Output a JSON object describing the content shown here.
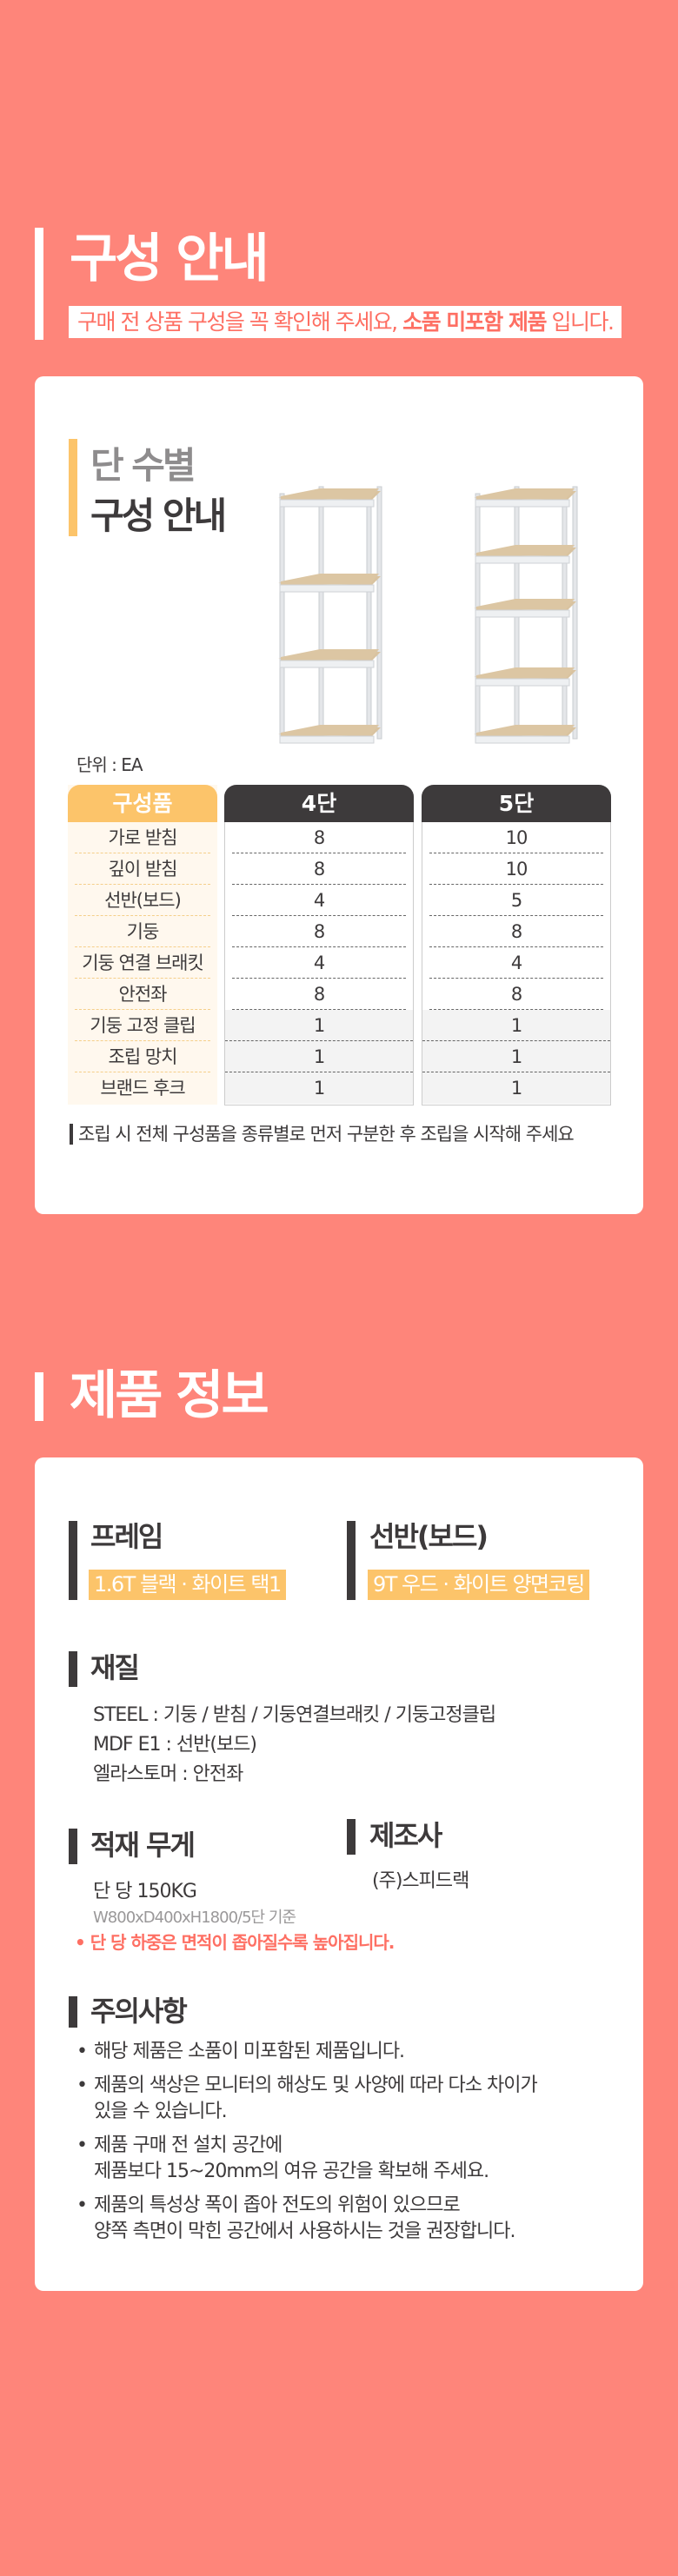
{
  "composition": {
    "title": "구성 안내",
    "subtitle_prefix": "구매 전 상품 구성을 꼭 확인해 주세요, ",
    "subtitle_emphasis": "소품 미포함 제품",
    "subtitle_suffix": " 입니다.",
    "card_title_line1": "단 수별",
    "card_title_line2": "구성 안내",
    "unit": "단위 : EA",
    "table": {
      "headers": [
        "구성품",
        "4단",
        "5단"
      ],
      "rows": [
        {
          "item": "가로 받침",
          "tier4": "8",
          "tier5": "10"
        },
        {
          "item": "깊이 받침",
          "tier4": "8",
          "tier5": "10"
        },
        {
          "item": "선반(보드)",
          "tier4": "4",
          "tier5": "5"
        },
        {
          "item": "기둥",
          "tier4": "8",
          "tier5": "8"
        },
        {
          "item": "기둥 연결 브래킷",
          "tier4": "4",
          "tier5": "4"
        },
        {
          "item": "안전좌",
          "tier4": "8",
          "tier5": "8"
        },
        {
          "item": "기둥 고정 클립",
          "tier4": "1",
          "tier5": "1"
        },
        {
          "item": "조립 망치",
          "tier4": "1",
          "tier5": "1"
        },
        {
          "item": "브랜드 후크",
          "tier4": "1",
          "tier5": "1"
        }
      ]
    },
    "note": "조립 시 전체 구성품을 종류별로 먼저 구분한 후 조립을 시작해 주세요"
  },
  "product_info": {
    "title": "제품 정보",
    "frame": {
      "label": "프레임",
      "value": "1.6T 블랙 · 화이트 택1"
    },
    "shelf": {
      "label": "선반(보드)",
      "value": "9T 우드 · 화이트 양면코팅"
    },
    "material": {
      "label": "재질",
      "lines": [
        "STEEL : 기둥 / 받침 / 기둥연결브래킷 / 기둥고정클립",
        "MDF E1 : 선반(보드)",
        "엘라스토머 : 안전좌"
      ]
    },
    "load": {
      "label": "적재 무게",
      "value": "단 당 150KG",
      "basis": "W800xD400xH1800/5단 기준",
      "warning": "단 당 하중은 면적이 좁아질수록 높아집니다."
    },
    "maker": {
      "label": "제조사",
      "value": "(주)스피드랙"
    },
    "caution": {
      "label": "주의사항",
      "items": [
        "해당 제품은 소품이 미포함된 제품입니다.",
        "제품의 색상은 모니터의 해상도 및 사양에 따라 다소 차이가\n있을 수 있습니다.",
        "제품 구매 전 설치 공간에\n제품보다 15~20mm의 여유 공간을 확보해 주세요.",
        "제품의 특성상 폭이 좁아 전도의 위험이 있으므로\n양쪽 측면이 막힌 공간에서 사용하시는 것을 권장합니다."
      ]
    }
  },
  "colors": {
    "background": "#fe857a",
    "accent_yellow": "#fcc46a",
    "dark": "#3d3a3b",
    "warning": "#fe6f63"
  }
}
